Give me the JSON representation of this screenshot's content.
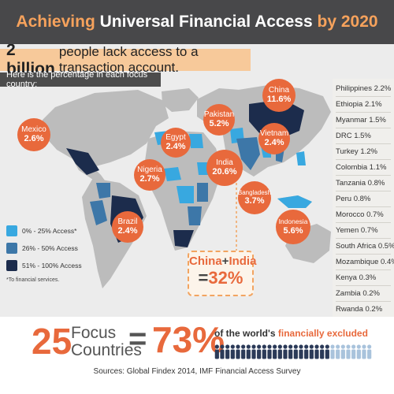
{
  "title": {
    "pre": "Achieving ",
    "highlight": "Universal Financial Access",
    "post": " by 2020"
  },
  "headline": {
    "bold": "2 billion",
    "rest": "people lack access to a transaction account."
  },
  "subheadline": "Here is the percentage in each focus country:",
  "bubbles": [
    {
      "name": "China",
      "pct": "11.6%"
    },
    {
      "name": "Mexico",
      "pct": "2.6%"
    },
    {
      "name": "Pakistan",
      "pct": "5.2%"
    },
    {
      "name": "Egypt",
      "pct": "2.4%"
    },
    {
      "name": "Vietnam",
      "pct": "2.4%"
    },
    {
      "name": "Nigeria",
      "pct": "2.7%"
    },
    {
      "name": "India",
      "pct": "20.6%"
    },
    {
      "name": "Bangladesh",
      "pct": "3.7%"
    },
    {
      "name": "Brazil",
      "pct": "2.4%"
    },
    {
      "name": "Indonesia",
      "pct": "5.6%"
    }
  ],
  "country_list": [
    "Philippines 2.2%",
    "Ethiopia 2.1%",
    "Myanmar 1.5%",
    "DRC 1.5%",
    "Turkey 1.2%",
    "Colombia 1.1%",
    "Tanzania 0.8%",
    "Peru 0.8%",
    "Morocco 0.7%",
    "Yemen 0.7%",
    "South Africa 0.5%",
    "Mozambique 0.4%",
    "Kenya 0.3%",
    "Zambia 0.2%",
    "Rwanda 0.2%"
  ],
  "legend": {
    "items": [
      {
        "label": "0% - 25% Access*",
        "color": "#38a8e0"
      },
      {
        "label": "26% - 50% Access",
        "color": "#3d77a8"
      },
      {
        "label": "51% - 100% Access",
        "color": "#1c2c4c"
      }
    ],
    "footnote": "*To financial services."
  },
  "china_india": {
    "china": "China",
    "plus": "+",
    "india": "India",
    "eq": "=",
    "pct": "32%"
  },
  "summary": {
    "num": "25",
    "word1": "Focus",
    "word2": "Countries",
    "eq": "=",
    "pct": "73%",
    "text_pre": "of the world's",
    "text_hl": "financially excluded",
    "people_total": 30,
    "people_dark": 22
  },
  "sources": "Sources: Global Findex 2014, IMF Financial Access Survey",
  "colors": {
    "orange": "#e8693c",
    "land": "#bcbcbc",
    "light": "#38a8e0",
    "medium": "#3d77a8",
    "dark": "#1c2c4c",
    "header": "#48484a"
  }
}
